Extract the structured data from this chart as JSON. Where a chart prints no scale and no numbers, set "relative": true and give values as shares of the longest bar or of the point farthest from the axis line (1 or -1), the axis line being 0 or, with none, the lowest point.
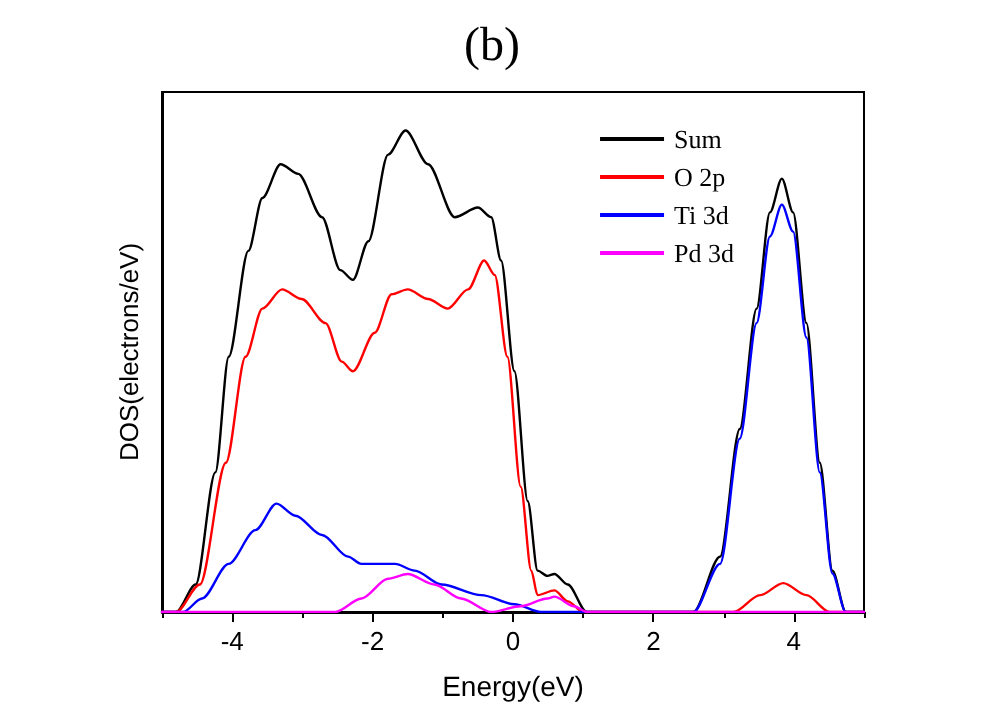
{
  "chart_data": {
    "type": "line",
    "title": "(b)",
    "xlabel": "Energy(eV)",
    "ylabel": "DOS(electrons/eV)",
    "relative": true,
    "xlim": [
      -5,
      5
    ],
    "xticks": [
      {
        "value": -5,
        "label": null
      },
      -4,
      {
        "value": -3,
        "label": null
      },
      -2,
      {
        "value": -1,
        "label": null
      },
      0,
      {
        "value": 1,
        "label": null
      },
      2,
      {
        "value": 3,
        "label": null
      },
      4,
      {
        "value": 5,
        "label": null
      }
    ],
    "legend": "top right",
    "grid": false,
    "marker": "none",
    "line_style": "solid",
    "series": [
      {
        "name": "Sum",
        "color": "#000000",
        "x": [
          -5,
          -4.8,
          -4.52,
          -4.24,
          -4.05,
          -3.77,
          -3.57,
          -3.31,
          -3.06,
          -2.72,
          -2.46,
          -2.28,
          -2.06,
          -1.78,
          -1.53,
          -1.21,
          -0.83,
          -0.5,
          -0.31,
          -0.17,
          0.02,
          0.21,
          0.35,
          0.49,
          0.59,
          0.78,
          1.05,
          2.57,
          2.95,
          3.23,
          3.47,
          3.66,
          3.83,
          3.99,
          4.18,
          4.37,
          4.55,
          4.74,
          5
        ],
        "values": [
          0,
          0,
          0.057,
          0.29,
          0.53,
          0.75,
          0.86,
          0.93,
          0.91,
          0.82,
          0.71,
          0.69,
          0.77,
          0.95,
          1,
          0.93,
          0.82,
          0.84,
          0.82,
          0.73,
          0.5,
          0.23,
          0.086,
          0.075,
          0.079,
          0.057,
          0,
          0,
          0.115,
          0.38,
          0.63,
          0.83,
          0.9,
          0.83,
          0.6,
          0.31,
          0.086,
          0,
          0
        ]
      },
      {
        "name": "O 2p",
        "color": "#ff0000",
        "x": [
          -5,
          -4.8,
          -4.46,
          -4.09,
          -3.81,
          -3.57,
          -3.29,
          -3.01,
          -2.67,
          -2.44,
          -2.28,
          -1.97,
          -1.73,
          -1.5,
          -1.21,
          -0.93,
          -0.64,
          -0.41,
          -0.26,
          -0.08,
          0.11,
          0.26,
          0.35,
          0.59,
          0.78,
          1,
          3.14,
          3.52,
          3.85,
          4.18,
          4.51,
          5
        ],
        "values": [
          0,
          0,
          0.057,
          0.31,
          0.53,
          0.63,
          0.67,
          0.65,
          0.6,
          0.52,
          0.5,
          0.58,
          0.66,
          0.67,
          0.65,
          0.63,
          0.67,
          0.73,
          0.7,
          0.53,
          0.26,
          0.086,
          0.035,
          0.045,
          0.022,
          0,
          0,
          0.035,
          0.06,
          0.035,
          0,
          0
        ]
      },
      {
        "name": "Ti 3d",
        "color": "#0000ff",
        "x": [
          -5,
          -4.7,
          -4.43,
          -4.05,
          -3.67,
          -3.37,
          -3.1,
          -2.72,
          -2.35,
          -2.16,
          -1.68,
          -1.4,
          -1.02,
          -0.45,
          0.02,
          0.4,
          1,
          2.57,
          2.95,
          3.23,
          3.47,
          3.66,
          3.83,
          3.99,
          4.18,
          4.37,
          4.55,
          4.74,
          5
        ],
        "values": [
          0,
          0,
          0.028,
          0.1,
          0.17,
          0.225,
          0.2,
          0.16,
          0.115,
          0.1,
          0.1,
          0.086,
          0.057,
          0.035,
          0.016,
          0,
          0,
          0,
          0.1,
          0.36,
          0.6,
          0.78,
          0.846,
          0.79,
          0.57,
          0.29,
          0.08,
          0,
          0
        ]
      },
      {
        "name": "Pd 3d",
        "color": "#ff00ff",
        "x": [
          -5,
          -2.53,
          -2.16,
          -1.78,
          -1.5,
          -1.12,
          -0.74,
          -0.31,
          0.11,
          0.49,
          0.59,
          0.87,
          1.05,
          5
        ],
        "values": [
          0,
          0,
          0.028,
          0.069,
          0.079,
          0.057,
          0.028,
          0,
          0.012,
          0.028,
          0.032,
          0.012,
          0,
          0
        ]
      }
    ]
  }
}
